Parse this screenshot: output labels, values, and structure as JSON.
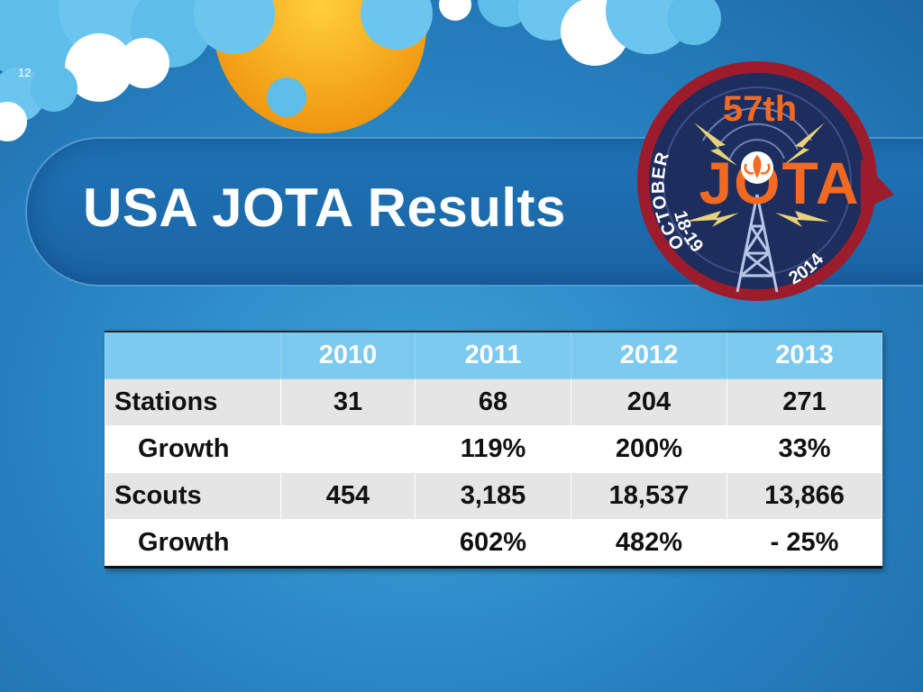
{
  "slide": {
    "number": "12",
    "title": "USA JOTA Results"
  },
  "logo": {
    "edition": "57th",
    "name": "JOTA",
    "month": "OCTOBER",
    "dates": "18-19",
    "year": "2014",
    "colors": {
      "ring": "#9c1c2c",
      "center": "#1d2d5e",
      "accent": "#f26a21",
      "bolt": "#e8d27a"
    }
  },
  "table": {
    "columns": [
      "",
      "2010",
      "2011",
      "2012",
      "2013"
    ],
    "rows": [
      {
        "label": "Stations",
        "values": [
          "31",
          "68",
          "204",
          "271"
        ]
      },
      {
        "label": "Growth",
        "values": [
          "",
          "119%",
          "200%",
          "33%"
        ]
      },
      {
        "label": "Scouts",
        "values": [
          "454",
          "3,185",
          "18,537",
          "13,866"
        ]
      },
      {
        "label": "Growth",
        "values": [
          "",
          "602%",
          "482%",
          "- 25%"
        ]
      }
    ]
  },
  "colors": {
    "background": "#2a86c4",
    "header": "#7ccaf0",
    "sun": "#f5a11c",
    "cloud": "#5fbde9"
  }
}
